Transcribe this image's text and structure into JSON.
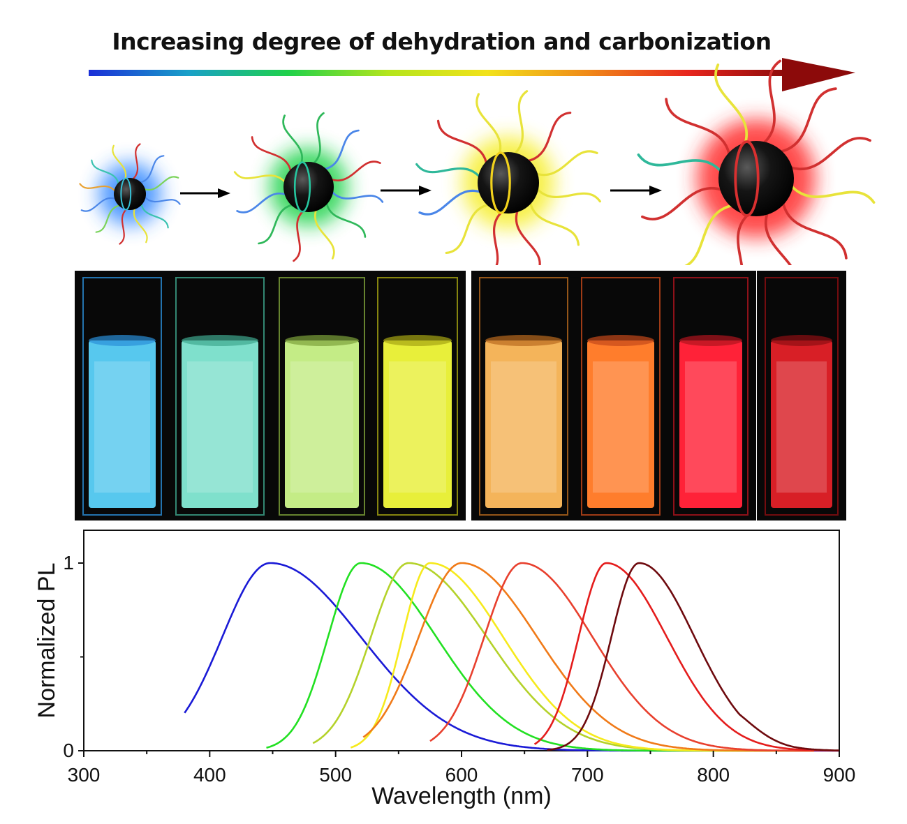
{
  "header": {
    "title": "Increasing degree of dehydration and carbonization",
    "gradient_colors": [
      "#1a2fd8",
      "#19a0c8",
      "#1fd14a",
      "#b4e51c",
      "#f2e21a",
      "#f08a18",
      "#e8261e",
      "#8c0a0a"
    ]
  },
  "scheme": {
    "stages": [
      {
        "name": "blue carbon dot",
        "glow": "#2f86ff",
        "ring": "#37c1d6"
      },
      {
        "name": "green carbon dot",
        "glow": "#1fd24a",
        "ring": "#26c7a0"
      },
      {
        "name": "yellow carbon dot",
        "glow": "#f6ee2a",
        "ring": "#f2d21c"
      },
      {
        "name": "red carbon dot",
        "glow": "#ff2a2a",
        "ring": "#d93030"
      }
    ]
  },
  "cuvettes": [
    {
      "name": "blue",
      "color": "#57c8ee",
      "edge": "#2a8fd8"
    },
    {
      "name": "cyan",
      "color": "#7fe0cc",
      "edge": "#3fa88f"
    },
    {
      "name": "green",
      "color": "#c4ec86",
      "edge": "#7ea33a"
    },
    {
      "name": "yellow",
      "color": "#e8ef3a",
      "edge": "#a6a512"
    },
    {
      "name": "amber",
      "color": "#f4b45a",
      "edge": "#b96a1e"
    },
    {
      "name": "orange",
      "color": "#ff7d2c",
      "edge": "#c5481a"
    },
    {
      "name": "red",
      "color": "#ff2238",
      "edge": "#b0141e"
    },
    {
      "name": "deep red",
      "color": "#d81f26",
      "edge": "#8e0e12"
    }
  ],
  "chart_data": {
    "type": "line",
    "xlabel": "Wavelength (nm)",
    "ylabel": "Normalized PL",
    "xlim": [
      300,
      900
    ],
    "ylim": [
      0,
      1.2
    ],
    "xticks": [
      "300",
      "400",
      "500",
      "600",
      "700",
      "800",
      "900"
    ],
    "yticks": [
      "0",
      "1"
    ],
    "series": [
      {
        "name": "blue",
        "color": "#1a1ad6",
        "peak": 448,
        "start": 380,
        "end": 900,
        "left_width": 38,
        "right_width": 72
      },
      {
        "name": "green",
        "color": "#22e022",
        "peak": 520,
        "start": 445,
        "end": 880,
        "left_width": 26,
        "right_width": 60
      },
      {
        "name": "yellow-green",
        "color": "#b4d22a",
        "peak": 558,
        "start": 482,
        "end": 880,
        "left_width": 30,
        "right_width": 62
      },
      {
        "name": "yellow",
        "color": "#f6ea1c",
        "peak": 575,
        "start": 512,
        "end": 880,
        "left_width": 22,
        "right_width": 58
      },
      {
        "name": "orange",
        "color": "#f07a18",
        "peak": 600,
        "start": 522,
        "end": 880,
        "left_width": 34,
        "right_width": 60
      },
      {
        "name": "red-orange",
        "color": "#e8402e",
        "peak": 648,
        "start": 575,
        "end": 880,
        "left_width": 30,
        "right_width": 56
      },
      {
        "name": "red",
        "color": "#e41c1c",
        "peak": 715,
        "start": 658,
        "end": 900,
        "left_width": 22,
        "right_width": 48
      },
      {
        "name": "dark red",
        "color": "#6e0a0e",
        "peak": 741,
        "start": 668,
        "end": 900,
        "left_width": 22,
        "right_width": 44
      }
    ]
  }
}
